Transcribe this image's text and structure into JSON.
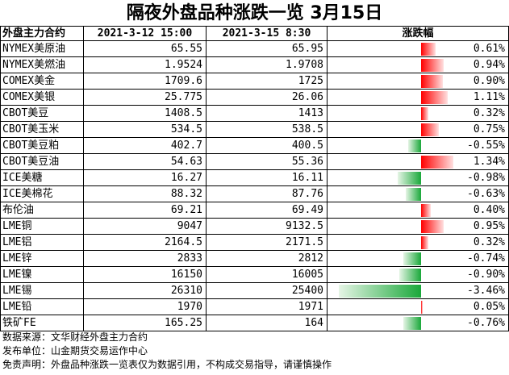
{
  "title": "隔夜外盘品种涨跌一览 3月15日",
  "headers": {
    "name": "外盘主力合约",
    "old": "2021-3-12 15:00",
    "new": "2021-3-15 8:30",
    "change": "涨跌幅"
  },
  "colors": {
    "up": "#ff0000",
    "down": "#1aa83a"
  },
  "chart_data": {
    "type": "table",
    "title": "隔夜外盘品种涨跌一览 3月15日",
    "columns": [
      "外盘主力合约",
      "2021-3-12 15:00",
      "2021-3-15 8:30",
      "涨跌幅"
    ],
    "rows": [
      {
        "name": "NYMEX美原油",
        "old": "65.55",
        "new": "65.95",
        "pct": 0.61,
        "pct_text": "0.61%"
      },
      {
        "name": "NYMEX美燃油",
        "old": "1.9524",
        "new": "1.9708",
        "pct": 0.94,
        "pct_text": "0.94%"
      },
      {
        "name": "COMEX美金",
        "old": "1709.6",
        "new": "1725",
        "pct": 0.9,
        "pct_text": "0.90%"
      },
      {
        "name": "COMEX美银",
        "old": "25.775",
        "new": "26.06",
        "pct": 1.11,
        "pct_text": "1.11%"
      },
      {
        "name": "CBOT美豆",
        "old": "1408.5",
        "new": "1413",
        "pct": 0.32,
        "pct_text": "0.32%"
      },
      {
        "name": "CBOT美玉米",
        "old": "534.5",
        "new": "538.5",
        "pct": 0.75,
        "pct_text": "0.75%"
      },
      {
        "name": "CBOT美豆粕",
        "old": "402.7",
        "new": "400.5",
        "pct": -0.55,
        "pct_text": "-0.55%"
      },
      {
        "name": "CBOT美豆油",
        "old": "54.63",
        "new": "55.36",
        "pct": 1.34,
        "pct_text": "1.34%"
      },
      {
        "name": "ICE美糖",
        "old": "16.27",
        "new": "16.11",
        "pct": -0.98,
        "pct_text": "-0.98%"
      },
      {
        "name": "ICE美棉花",
        "old": "88.32",
        "new": "87.76",
        "pct": -0.63,
        "pct_text": "-0.63%"
      },
      {
        "name": "布伦油",
        "old": "69.21",
        "new": "69.49",
        "pct": 0.4,
        "pct_text": "0.40%"
      },
      {
        "name": "LME铜",
        "old": "9047",
        "new": "9132.5",
        "pct": 0.95,
        "pct_text": "0.95%"
      },
      {
        "name": "LME铝",
        "old": "2164.5",
        "new": "2171.5",
        "pct": 0.32,
        "pct_text": "0.32%"
      },
      {
        "name": "LME锌",
        "old": "2833",
        "new": "2812",
        "pct": -0.74,
        "pct_text": "-0.74%"
      },
      {
        "name": "LME镍",
        "old": "16150",
        "new": "16005",
        "pct": -0.9,
        "pct_text": "-0.90%"
      },
      {
        "name": "LME锡",
        "old": "26310",
        "new": "25400",
        "pct": -3.46,
        "pct_text": "-3.46%"
      },
      {
        "name": "LME铅",
        "old": "1970",
        "new": "1971",
        "pct": 0.05,
        "pct_text": "0.05%"
      },
      {
        "name": "铁矿FE",
        "old": "165.25",
        "new": "164",
        "pct": -0.76,
        "pct_text": "-0.76%"
      }
    ]
  },
  "notes": {
    "source": "数据来源：文华财经外盘主力合约",
    "publisher": "发布单位：山金期货交易运作中心",
    "disclaimer": "免责声明：外盘品种涨跌一览表仅为数据引用，不构成交易指导，请谨慎操作"
  }
}
